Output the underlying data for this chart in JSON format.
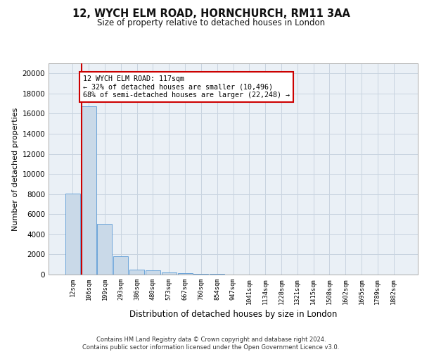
{
  "title1": "12, WYCH ELM ROAD, HORNCHURCH, RM11 3AA",
  "title2": "Size of property relative to detached houses in London",
  "xlabel": "Distribution of detached houses by size in London",
  "ylabel": "Number of detached properties",
  "categories": [
    "12sqm",
    "106sqm",
    "199sqm",
    "293sqm",
    "386sqm",
    "480sqm",
    "573sqm",
    "667sqm",
    "760sqm",
    "854sqm",
    "947sqm",
    "1041sqm",
    "1134sqm",
    "1228sqm",
    "1321sqm",
    "1415sqm",
    "1508sqm",
    "1602sqm",
    "1695sqm",
    "1789sqm",
    "1882sqm"
  ],
  "values": [
    8050,
    16700,
    5050,
    1820,
    490,
    390,
    195,
    155,
    100,
    80,
    0,
    0,
    0,
    0,
    0,
    0,
    0,
    0,
    0,
    0,
    0
  ],
  "bar_color": "#c9d9e8",
  "bar_edge_color": "#5b9bd5",
  "annotation_line1": "12 WYCH ELM ROAD: 117sqm",
  "annotation_line2": "← 32% of detached houses are smaller (10,496)",
  "annotation_line3": "68% of semi-detached houses are larger (22,248) →",
  "vline_color": "#cc0000",
  "footer": "Contains HM Land Registry data © Crown copyright and database right 2024.\nContains public sector information licensed under the Open Government Licence v3.0.",
  "ylim": [
    0,
    21000
  ],
  "yticks": [
    0,
    2000,
    4000,
    6000,
    8000,
    10000,
    12000,
    14000,
    16000,
    18000,
    20000
  ],
  "grid_color": "#c8d4e0",
  "bg_color": "#eaf0f6"
}
